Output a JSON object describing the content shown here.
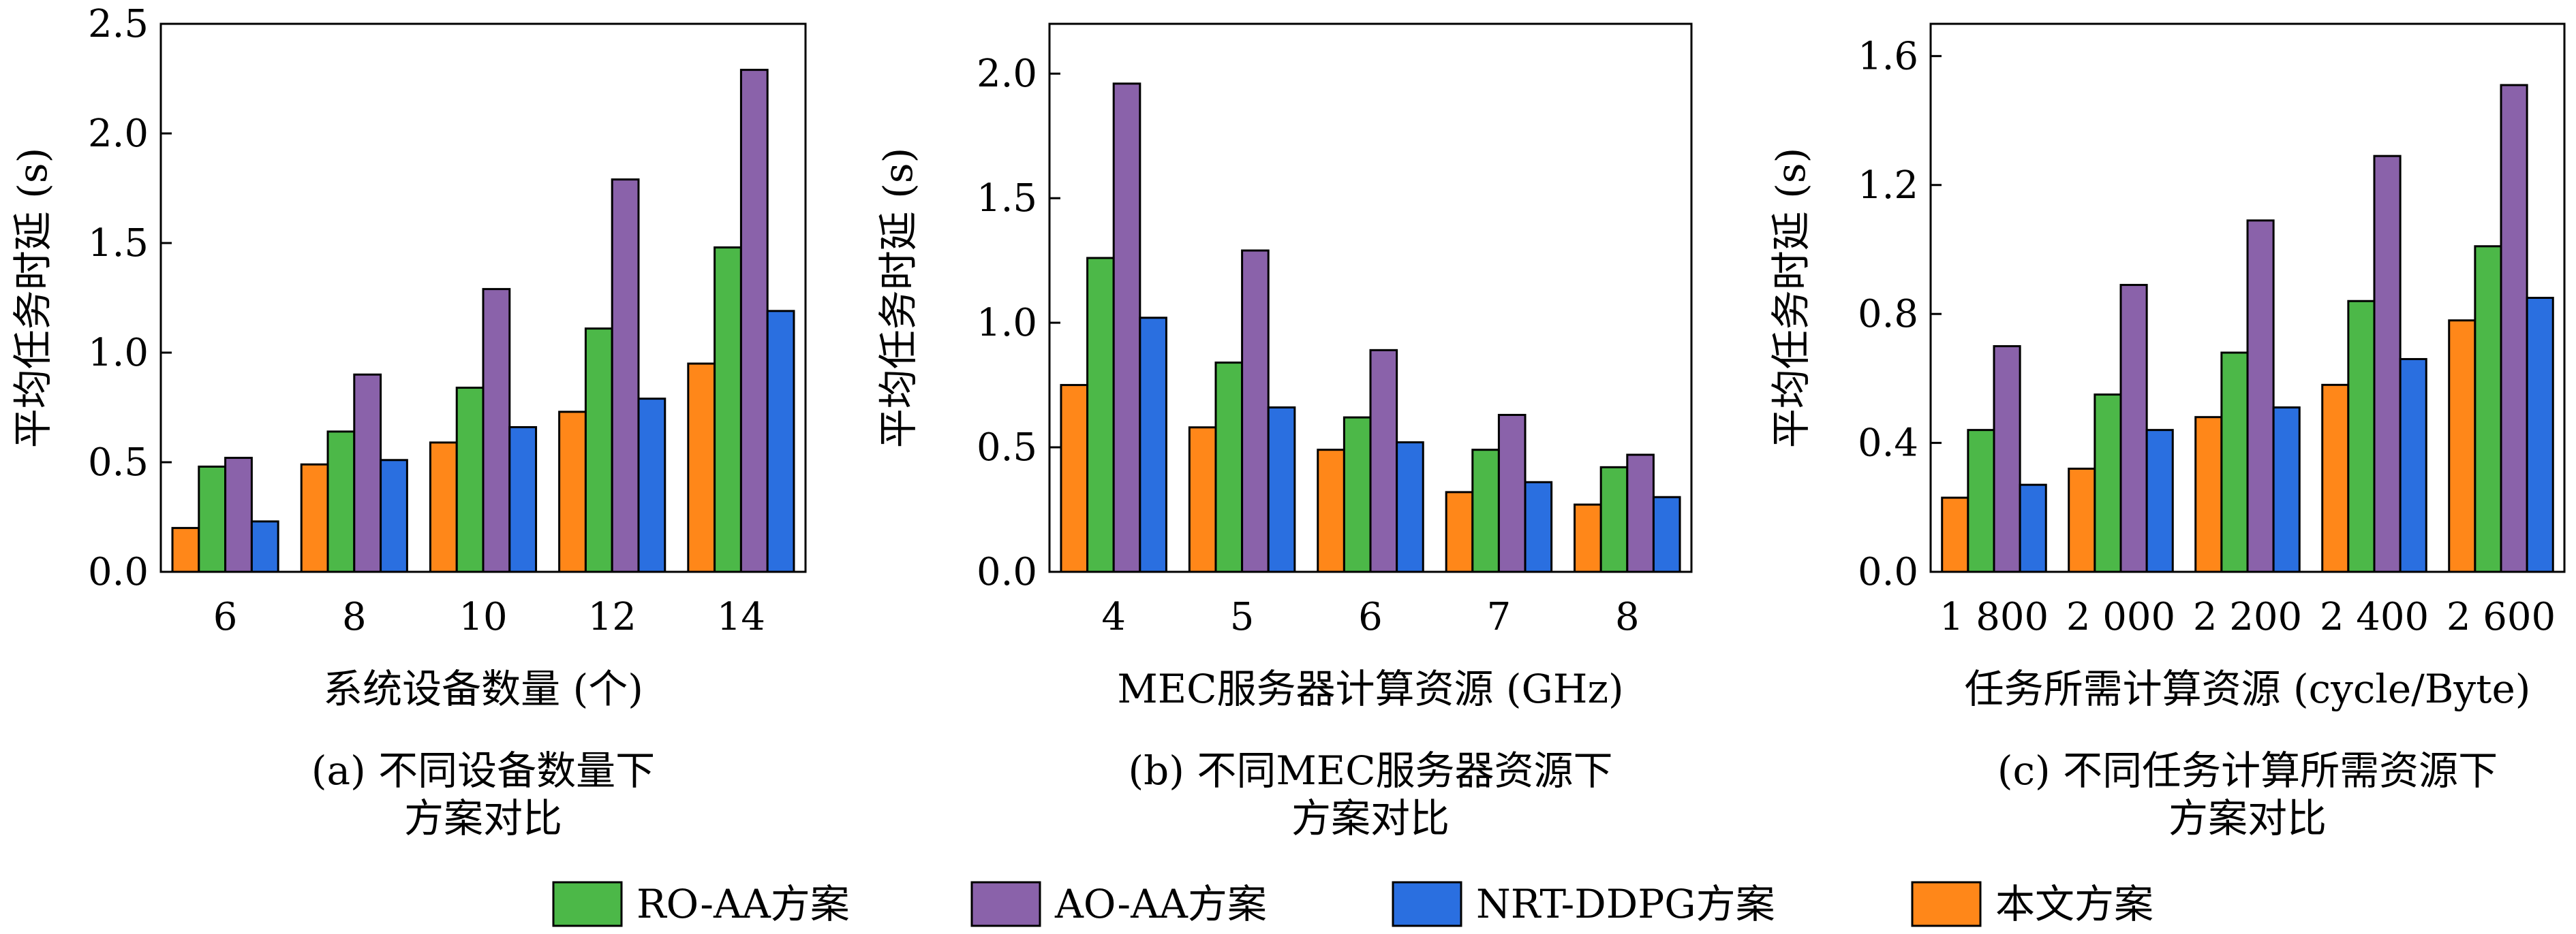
{
  "colors": {
    "series": [
      "#4cb848",
      "#8a62aa",
      "#2a6fe0",
      "#ff8719"
    ],
    "frame": "#000000",
    "background": "#ffffff"
  },
  "legend": {
    "items": [
      "RO-AA方案",
      "AO-AA方案",
      "NRT-DDPG方案",
      "本文方案"
    ]
  },
  "chart_data": [
    {
      "type": "bar",
      "categories": [
        "6",
        "8",
        "10",
        "12",
        "14"
      ],
      "series": [
        {
          "name": "RO-AA方案",
          "values": [
            0.48,
            0.64,
            0.84,
            1.11,
            1.48
          ]
        },
        {
          "name": "AO-AA方案",
          "values": [
            0.52,
            0.9,
            1.29,
            1.79,
            2.29
          ]
        },
        {
          "name": "NRT-DDPG方案",
          "values": [
            0.23,
            0.51,
            0.66,
            0.79,
            1.19
          ]
        },
        {
          "name": "本文方案",
          "values": [
            0.2,
            0.49,
            0.59,
            0.73,
            0.95
          ]
        }
      ],
      "bar_order": [
        "本文方案",
        "RO-AA方案",
        "AO-AA方案",
        "NRT-DDPG方案"
      ],
      "xlabel": "系统设备数量 (个)",
      "ylabel": "平均任务时延 (s)",
      "ylim": [
        0,
        2.5
      ],
      "yticks": [
        0.0,
        0.5,
        1.0,
        1.5,
        2.0,
        2.5
      ],
      "ytick_labels": [
        "0.0",
        "0.5",
        "1.0",
        "1.5",
        "2.0",
        "2.5"
      ],
      "caption_line1": "(a) 不同设备数量下",
      "caption_line2": "方案对比",
      "grid": false
    },
    {
      "type": "bar",
      "categories": [
        "4",
        "5",
        "6",
        "7",
        "8"
      ],
      "series": [
        {
          "name": "RO-AA方案",
          "values": [
            1.26,
            0.84,
            0.62,
            0.49,
            0.42
          ]
        },
        {
          "name": "AO-AA方案",
          "values": [
            1.96,
            1.29,
            0.89,
            0.63,
            0.47
          ]
        },
        {
          "name": "NRT-DDPG方案",
          "values": [
            1.02,
            0.66,
            0.52,
            0.36,
            0.3
          ]
        },
        {
          "name": "本文方案",
          "values": [
            0.75,
            0.58,
            0.49,
            0.32,
            0.27
          ]
        }
      ],
      "bar_order": [
        "本文方案",
        "RO-AA方案",
        "AO-AA方案",
        "NRT-DDPG方案"
      ],
      "xlabel": "MEC服务器计算资源 (GHz)",
      "ylabel": "平均任务时延 (s)",
      "ylim": [
        0,
        2.2
      ],
      "yticks": [
        0.0,
        0.5,
        1.0,
        1.5,
        2.0
      ],
      "ytick_labels": [
        "0.0",
        "0.5",
        "1.0",
        "1.5",
        "2.0"
      ],
      "caption_line1": "(b) 不同MEC服务器资源下",
      "caption_line2": "方案对比",
      "grid": false
    },
    {
      "type": "bar",
      "categories": [
        "1 800",
        "2 000",
        "2 200",
        "2 400",
        "2 600"
      ],
      "series": [
        {
          "name": "RO-AA方案",
          "values": [
            0.44,
            0.55,
            0.68,
            0.84,
            1.01
          ]
        },
        {
          "name": "AO-AA方案",
          "values": [
            0.7,
            0.89,
            1.09,
            1.29,
            1.51
          ]
        },
        {
          "name": "NRT-DDPG方案",
          "values": [
            0.27,
            0.44,
            0.51,
            0.66,
            0.85
          ]
        },
        {
          "name": "本文方案",
          "values": [
            0.23,
            0.32,
            0.48,
            0.58,
            0.78
          ]
        }
      ],
      "bar_order": [
        "本文方案",
        "RO-AA方案",
        "AO-AA方案",
        "NRT-DDPG方案"
      ],
      "xlabel": "任务所需计算资源 (cycle/Byte)",
      "ylabel": "平均任务时延 (s)",
      "ylim": [
        0,
        1.7
      ],
      "yticks": [
        0.0,
        0.4,
        0.8,
        1.2,
        1.6
      ],
      "ytick_labels": [
        "0.0",
        "0.4",
        "0.8",
        "1.2",
        "1.6"
      ],
      "caption_line1": "(c) 不同任务计算所需资源下",
      "caption_line2": "方案对比",
      "grid": false
    }
  ]
}
